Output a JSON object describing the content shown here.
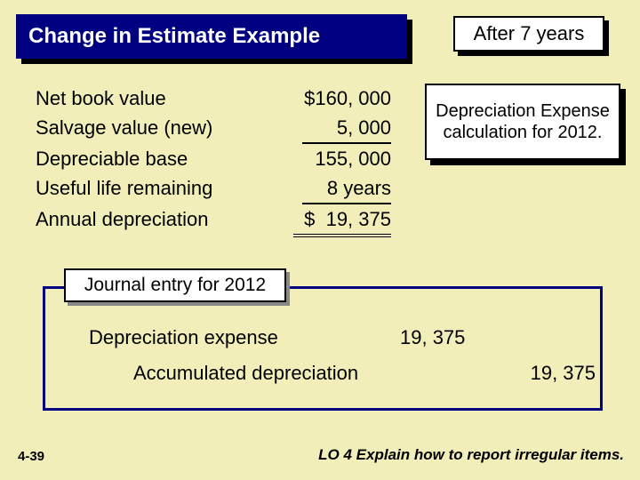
{
  "colors": {
    "background": "#f2eeba",
    "title_bg": "#000080",
    "title_text": "#ffffff",
    "shadow": "#000000",
    "border": "#000000"
  },
  "title": "Change in Estimate Example",
  "badge": "After 7 years",
  "calc": {
    "rows": [
      {
        "label": "Net book value",
        "value": "$160, 000"
      },
      {
        "label": "Salvage value (new)",
        "value": "5, 000"
      },
      {
        "label": "Depreciable base",
        "value": "155, 000"
      },
      {
        "label": "Useful life remaining",
        "value": "8 years"
      },
      {
        "label": "Annual depreciation",
        "value": "$  19, 375"
      }
    ]
  },
  "callout": "Depreciation Expense calculation for 2012.",
  "journal": {
    "caption": "Journal entry for 2012",
    "lines": [
      {
        "account": "Depreciation expense",
        "debit": "19, 375",
        "credit": ""
      },
      {
        "account": "Accumulated depreciation",
        "debit": "",
        "credit": "19, 375"
      }
    ]
  },
  "slide_number": "4-39",
  "learning_objective": "LO 4  Explain how to report irregular items."
}
